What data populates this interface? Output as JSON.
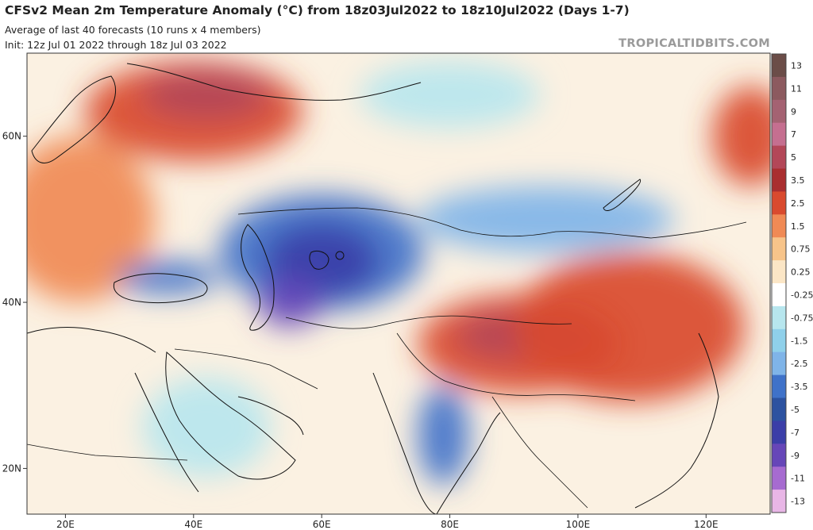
{
  "header": {
    "title": "CFSv2 Mean 2m Temperature Anomaly (°C) from 18z03Jul2022 to 18z10Jul2022 (Days 1-7)",
    "subtitle": "Average of last 40 forecasts (10 runs x 4 members)",
    "init": "Init: 12z Jul 01 2022 through 18z Jul 03 2022",
    "brand": "TROPICALTIDBITS.COM"
  },
  "map": {
    "lat_ticks": [
      {
        "value": 60,
        "label": "60N"
      },
      {
        "value": 40,
        "label": "40N"
      },
      {
        "value": 20,
        "label": "20N"
      }
    ],
    "lon_ticks": [
      {
        "value": 20,
        "label": "20E"
      },
      {
        "value": 40,
        "label": "40E"
      },
      {
        "value": 60,
        "label": "60E"
      },
      {
        "value": 80,
        "label": "80E"
      },
      {
        "value": 100,
        "label": "100E"
      },
      {
        "value": 120,
        "label": "120E"
      }
    ],
    "lon_range": [
      14,
      130
    ],
    "lat_range": [
      14.5,
      70
    ],
    "colors": {
      "ocean_neutral": "#fbf1e2",
      "strong_warm": "#b34758",
      "warm": "#d94a2e",
      "mild_warm": "#f08a55",
      "slight_warm": "#f7c48a",
      "near_zero": "#ffffff",
      "slight_cool": "#b7e6ee",
      "cool": "#7fb4e8",
      "cold": "#3f72c9",
      "very_cold": "#3b3ea8",
      "extreme_cold": "#6646b8"
    },
    "anomaly_regions": [
      {
        "name": "nw-russia-warm",
        "lon": 40,
        "lat": 63,
        "rlon": 17,
        "rlat": 6,
        "color": "#d94a2e"
      },
      {
        "name": "nw-russia-core",
        "lon": 42,
        "lat": 65,
        "rlon": 10,
        "rlat": 3,
        "color": "#b34758"
      },
      {
        "name": "europe-warm",
        "lon": 22,
        "lat": 50,
        "rlon": 12,
        "rlat": 10,
        "color": "#f08a55"
      },
      {
        "name": "east-siberia-warm",
        "lon": 127,
        "lat": 60,
        "rlon": 6,
        "rlat": 6,
        "color": "#d94a2e"
      },
      {
        "name": "tibet-warm",
        "lon": 91,
        "lat": 35,
        "rlon": 16,
        "rlat": 6,
        "color": "#d94a2e"
      },
      {
        "name": "tibet-core",
        "lon": 92,
        "lat": 36,
        "rlon": 11,
        "rlat": 3,
        "color": "#b34758"
      },
      {
        "name": "china-warm",
        "lon": 108,
        "lat": 37,
        "rlon": 18,
        "rlat": 9,
        "color": "#d94a2e"
      },
      {
        "name": "kazakh-cold",
        "lon": 60,
        "lat": 46,
        "rlon": 16,
        "rlat": 7,
        "color": "#3f72c9"
      },
      {
        "name": "aral-core",
        "lon": 60,
        "lat": 45,
        "rlon": 9,
        "rlat": 4.5,
        "color": "#3b3ea8"
      },
      {
        "name": "caspian-core",
        "lon": 55,
        "lat": 40,
        "rlon": 5,
        "rlat": 3,
        "color": "#6646b8"
      },
      {
        "name": "black-sea-cool",
        "lon": 36,
        "lat": 43,
        "rlon": 8,
        "rlat": 2,
        "color": "#3f72c9"
      },
      {
        "name": "india-cold",
        "lon": 79,
        "lat": 24,
        "rlon": 4,
        "rlat": 6,
        "color": "#3f72c9"
      },
      {
        "name": "mongolia-cool",
        "lon": 95,
        "lat": 50,
        "rlon": 20,
        "rlat": 4,
        "color": "#7fb4e8"
      },
      {
        "name": "arctic-cool",
        "lon": 80,
        "lat": 65,
        "rlon": 14,
        "rlat": 4,
        "color": "#b7e6ee"
      },
      {
        "name": "arabia-cool",
        "lon": 42,
        "lat": 25,
        "rlon": 10,
        "rlat": 6,
        "color": "#b7e6ee"
      }
    ]
  },
  "colorbar": {
    "levels": [
      {
        "label": "13",
        "color": "#6b4d48"
      },
      {
        "label": "11",
        "color": "#8c5a5f"
      },
      {
        "label": "9",
        "color": "#a46272"
      },
      {
        "label": "7",
        "color": "#c56f90"
      },
      {
        "label": "5",
        "color": "#b34758"
      },
      {
        "label": "3.5",
        "color": "#a92e2f"
      },
      {
        "label": "2.5",
        "color": "#d94a2e"
      },
      {
        "label": "1.5",
        "color": "#f08a55"
      },
      {
        "label": "0.75",
        "color": "#f7c48a"
      },
      {
        "label": "0.25",
        "color": "#fbe6c6"
      },
      {
        "label": "-0.25",
        "color": "#ffffff"
      },
      {
        "label": "-0.75",
        "color": "#b7e6ee"
      },
      {
        "label": "-1.5",
        "color": "#8fd0ea"
      },
      {
        "label": "-2.5",
        "color": "#7fb4e8"
      },
      {
        "label": "-3.5",
        "color": "#3f72c9"
      },
      {
        "label": "-5",
        "color": "#2c52a0"
      },
      {
        "label": "-7",
        "color": "#3b3ea8"
      },
      {
        "label": "-9",
        "color": "#6646b8"
      },
      {
        "label": "-11",
        "color": "#a66bd0"
      },
      {
        "label": "-13",
        "color": "#e8b6e6"
      }
    ]
  }
}
